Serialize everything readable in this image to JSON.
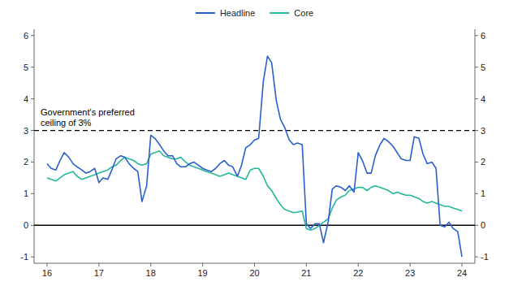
{
  "chart_data": {
    "type": "line",
    "x": [
      16.0,
      16.08,
      16.17,
      16.25,
      16.33,
      16.42,
      16.5,
      16.58,
      16.67,
      16.75,
      16.83,
      16.92,
      17.0,
      17.08,
      17.17,
      17.25,
      17.33,
      17.42,
      17.5,
      17.58,
      17.67,
      17.75,
      17.83,
      17.92,
      18.0,
      18.08,
      18.17,
      18.25,
      18.33,
      18.42,
      18.5,
      18.58,
      18.67,
      18.75,
      18.83,
      18.92,
      19.0,
      19.08,
      19.17,
      19.25,
      19.33,
      19.42,
      19.5,
      19.58,
      19.67,
      19.75,
      19.83,
      19.92,
      20.0,
      20.08,
      20.17,
      20.25,
      20.33,
      20.42,
      20.5,
      20.58,
      20.67,
      20.75,
      20.83,
      20.92,
      21.0,
      21.08,
      21.17,
      21.25,
      21.33,
      21.42,
      21.5,
      21.58,
      21.67,
      21.75,
      21.83,
      21.92,
      22.0,
      22.08,
      22.17,
      22.25,
      22.33,
      22.42,
      22.5,
      22.58,
      22.67,
      22.75,
      22.83,
      22.92,
      23.0,
      23.08,
      23.17,
      23.25,
      23.33,
      23.42,
      23.5,
      23.58,
      23.67,
      23.75,
      23.83,
      23.92,
      24.0
    ],
    "series": [
      {
        "name": "Headline",
        "color": "#2b5fcc",
        "values": [
          1.95,
          1.8,
          1.75,
          2.05,
          2.3,
          2.15,
          1.95,
          1.85,
          1.75,
          1.65,
          1.7,
          1.8,
          1.35,
          1.5,
          1.45,
          1.75,
          2.1,
          2.2,
          2.15,
          1.95,
          1.8,
          1.7,
          0.75,
          1.25,
          2.85,
          2.75,
          2.55,
          2.35,
          2.2,
          2.2,
          1.95,
          1.85,
          1.85,
          1.95,
          2.0,
          1.9,
          1.8,
          1.75,
          1.7,
          1.8,
          1.95,
          2.05,
          1.9,
          1.85,
          1.55,
          1.9,
          2.45,
          2.55,
          2.7,
          2.75,
          4.55,
          5.35,
          5.15,
          3.95,
          3.35,
          3.1,
          2.7,
          2.55,
          2.6,
          2.55,
          0.05,
          -0.1,
          0.05,
          0.05,
          -0.55,
          0.1,
          1.15,
          1.25,
          1.2,
          1.1,
          1.25,
          1.05,
          2.3,
          2.05,
          1.65,
          1.65,
          2.2,
          2.55,
          2.75,
          2.65,
          2.5,
          2.3,
          2.1,
          2.05,
          2.05,
          2.8,
          2.75,
          2.25,
          1.95,
          2.0,
          1.8,
          0.0,
          -0.05,
          0.1,
          -0.1,
          -0.2,
          -1.0
        ]
      },
      {
        "name": "Core",
        "color": "#26b89a",
        "values": [
          1.5,
          1.45,
          1.4,
          1.5,
          1.6,
          1.65,
          1.7,
          1.55,
          1.45,
          1.5,
          1.55,
          1.6,
          1.65,
          1.7,
          1.75,
          1.85,
          1.9,
          2.05,
          2.15,
          2.1,
          2.05,
          1.95,
          1.9,
          1.95,
          2.25,
          2.3,
          2.35,
          2.2,
          2.15,
          2.1,
          2.1,
          2.15,
          2.0,
          1.9,
          1.85,
          1.8,
          1.75,
          1.7,
          1.65,
          1.6,
          1.55,
          1.6,
          1.65,
          1.6,
          1.55,
          1.5,
          1.45,
          1.75,
          1.8,
          1.8,
          1.55,
          1.25,
          1.1,
          0.85,
          0.65,
          0.5,
          0.45,
          0.4,
          0.42,
          0.45,
          -0.1,
          -0.15,
          -0.1,
          0.0,
          0.1,
          0.2,
          0.55,
          0.8,
          0.9,
          0.95,
          1.1,
          1.15,
          1.2,
          1.2,
          1.1,
          1.2,
          1.25,
          1.2,
          1.15,
          1.1,
          1.0,
          1.05,
          1.0,
          0.95,
          0.95,
          0.9,
          0.85,
          0.75,
          0.7,
          0.75,
          0.7,
          0.65,
          0.6,
          0.6,
          0.55,
          0.5,
          0.45
        ]
      }
    ],
    "xlim": [
      15.75,
      24.25
    ],
    "xticks": [
      16,
      17,
      18,
      19,
      20,
      21,
      22,
      23,
      24
    ],
    "ylim": [
      -1.2,
      6.2
    ],
    "yticks": [
      -1,
      0,
      1,
      2,
      3,
      4,
      5,
      6
    ],
    "y2lim": [
      -1.2,
      6.2
    ],
    "y2ticks": [
      -1,
      0,
      1,
      2,
      3,
      4,
      5,
      6
    ],
    "reference_lines": [
      {
        "value": 0,
        "color": "#000000",
        "line_style": "solid"
      },
      {
        "value": 3.0,
        "color": "#000000",
        "line_style": "dashed",
        "label": "Government's preferred\nceiling of 3%"
      }
    ],
    "legend": "top",
    "grid": false
  }
}
